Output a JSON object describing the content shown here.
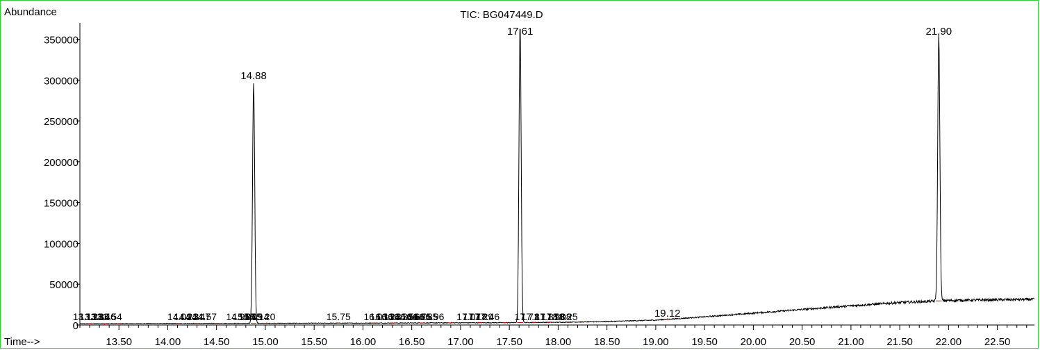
{
  "chart_data": {
    "type": "line",
    "title": "TIC: BG047449.D",
    "ylabel": "Abundance",
    "xlabel": "Time-->",
    "xlim": [
      13.1,
      22.88
    ],
    "ylim": [
      0,
      370000
    ],
    "y_ticks": [
      0,
      50000,
      100000,
      150000,
      200000,
      250000,
      300000,
      350000
    ],
    "y_tick_labels": [
      "0",
      "50000",
      "100000",
      "150000",
      "200000",
      "250000",
      "300000",
      "350000"
    ],
    "x_ticks": [
      13.5,
      14.0,
      14.5,
      15.0,
      15.5,
      16.0,
      16.5,
      17.0,
      17.5,
      18.0,
      18.5,
      19.0,
      19.5,
      20.0,
      20.5,
      21.0,
      21.5,
      22.0,
      22.5
    ],
    "x_tick_labels": [
      "13.50",
      "14.00",
      "14.50",
      "15.00",
      "15.50",
      "16.00",
      "16.50",
      "17.00",
      "17.50",
      "18.00",
      "18.50",
      "19.00",
      "19.50",
      "20.00",
      "20.50",
      "21.00",
      "21.50",
      "22.00",
      "22.50"
    ],
    "grid": false,
    "baseline": [
      [
        13.1,
        1500
      ],
      [
        14.0,
        1800
      ],
      [
        15.0,
        2000
      ],
      [
        16.0,
        2300
      ],
      [
        17.0,
        2700
      ],
      [
        17.5,
        2900
      ],
      [
        18.0,
        3300
      ],
      [
        18.5,
        4200
      ],
      [
        19.0,
        6000
      ],
      [
        19.5,
        10000
      ],
      [
        20.0,
        14500
      ],
      [
        20.5,
        19000
      ],
      [
        21.0,
        23500
      ],
      [
        21.5,
        27500
      ],
      [
        22.0,
        30000
      ],
      [
        22.88,
        31500
      ]
    ],
    "peaks": [
      {
        "rt": 14.88,
        "height": 296000,
        "label": "14.88"
      },
      {
        "rt": 17.61,
        "height": 368000,
        "label": "17.61"
      },
      {
        "rt": 21.9,
        "height": 355000,
        "label": "21.90"
      },
      {
        "rt": 19.12,
        "height": 2000,
        "label": "19.12"
      }
    ],
    "small_peak_labels": [
      {
        "rt": 13.28,
        "label": "13.13 13.28 13.36 13.46 13.54"
      },
      {
        "rt": 14.25,
        "label": "14.09 14.23 14.31 14.47 14.57"
      },
      {
        "rt": 14.85,
        "label": "14.98 15.04 15.09 15.14 15.20"
      },
      {
        "rt": 15.75,
        "label": "15.75"
      },
      {
        "rt": 16.26,
        "label": "16.03 16.13 16.24 16.31 16.38"
      },
      {
        "rt": 16.58,
        "label": "16.56 16.66 16.75 16.85 16.96"
      },
      {
        "rt": 17.18,
        "label": "17.07 17.18 17.29 17.46"
      },
      {
        "rt": 17.71,
        "label": "17.71 17.81"
      },
      {
        "rt": 17.98,
        "label": "17.87 17.98 18.08 18.25"
      }
    ]
  }
}
